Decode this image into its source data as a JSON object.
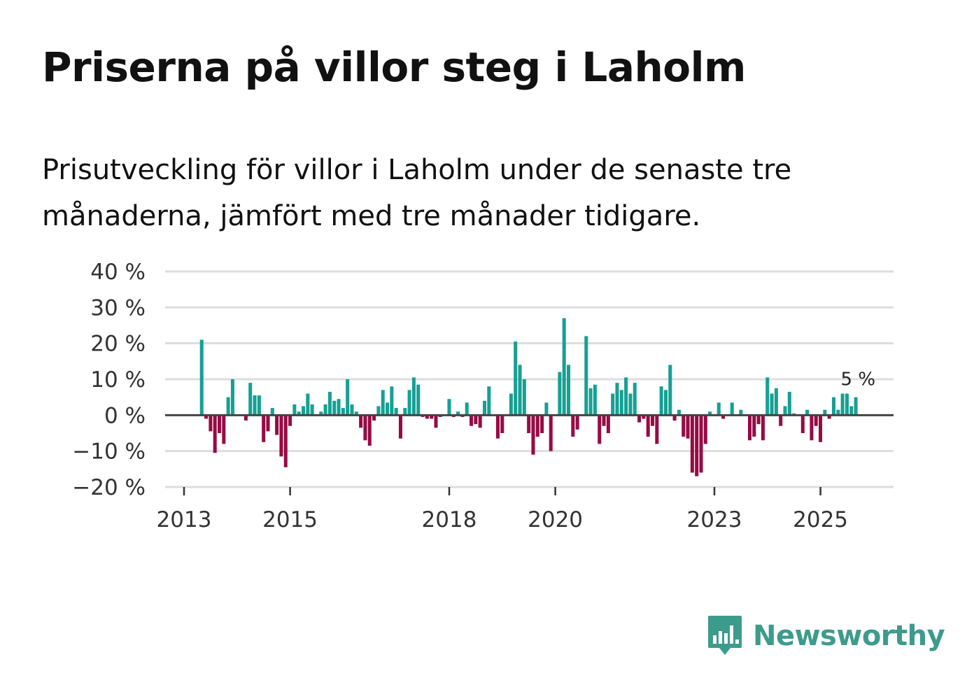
{
  "header": {
    "title": "Priserna på villor steg i Laholm",
    "subtitle": "Prisutveckling för villor i Laholm under de senaste tre månaderna, jämfört med tre månader tidigare."
  },
  "colors": {
    "positive": "#16a093",
    "negative": "#960b45",
    "grid": "#dddddd",
    "zero_line": "#444444",
    "brand": "#3d9b8c"
  },
  "brand": {
    "name": "Newsworthy",
    "icon": "newsworthy-logo-icon"
  },
  "chart_data": {
    "type": "bar",
    "title": "Priserna på villor steg i Laholm",
    "xlabel": "",
    "ylabel": "",
    "ylim": [
      -20,
      40
    ],
    "y_ticks": [
      40,
      30,
      20,
      10,
      0,
      -10,
      -20
    ],
    "y_tick_labels": [
      "40 %",
      "30 %",
      "20 %",
      "10 %",
      "0 %",
      "−10 %",
      "−20 %"
    ],
    "x_ticks": [
      2013,
      2015,
      2018,
      2020,
      2023,
      2025
    ],
    "x_tick_labels": [
      "2013",
      "2015",
      "2018",
      "2020",
      "2023",
      "2025"
    ],
    "x_start": 2013.333,
    "x_step": 0.08333,
    "grid": true,
    "annotation": {
      "label": "5 %",
      "value": 5
    },
    "series": [
      {
        "name": "Prisutveckling",
        "values": [
          21,
          -1,
          -4.5,
          -10.5,
          -5,
          -8,
          5,
          10,
          0,
          0,
          -1.5,
          9,
          5.5,
          5.5,
          -7.5,
          -4.5,
          2,
          -5.5,
          -11.5,
          -14.5,
          -3,
          3,
          1,
          2.5,
          6,
          3,
          0,
          1,
          3,
          6.5,
          4,
          4.5,
          2,
          10,
          3,
          1,
          -3.5,
          -7,
          -8.5,
          -1.5,
          2.5,
          7,
          3.5,
          8,
          2,
          -6.5,
          2,
          7,
          10.5,
          8.5,
          -0.5,
          -1,
          -1,
          -3.5,
          -0.5,
          0,
          4.5,
          -0.5,
          1,
          -0.5,
          3.5,
          -3,
          -2.5,
          -3.5,
          4,
          8,
          0,
          -6.5,
          -5,
          0,
          6,
          20.5,
          14,
          10,
          -5,
          -11,
          -6,
          -5,
          3.5,
          -10,
          0,
          12,
          27,
          14,
          -6,
          -4,
          0,
          22,
          7.5,
          8.5,
          -8,
          -3,
          -5,
          6,
          9,
          7,
          10.5,
          6,
          9,
          -2,
          -1,
          -6,
          -3,
          -8,
          8,
          7,
          14,
          -1.5,
          1.5,
          -6,
          -6.5,
          -16,
          -17,
          -16,
          -8,
          1,
          0,
          3.5,
          -1,
          0,
          3.5,
          0,
          1.5,
          0,
          -7,
          -6,
          -2.5,
          -7,
          10.5,
          6,
          7.5,
          -3,
          2.5,
          6.5,
          0.5,
          0,
          -5,
          1.5,
          -7,
          -3,
          -7.5,
          1.5,
          -1,
          5,
          1.5,
          6,
          6,
          2.5,
          5
        ]
      }
    ]
  }
}
